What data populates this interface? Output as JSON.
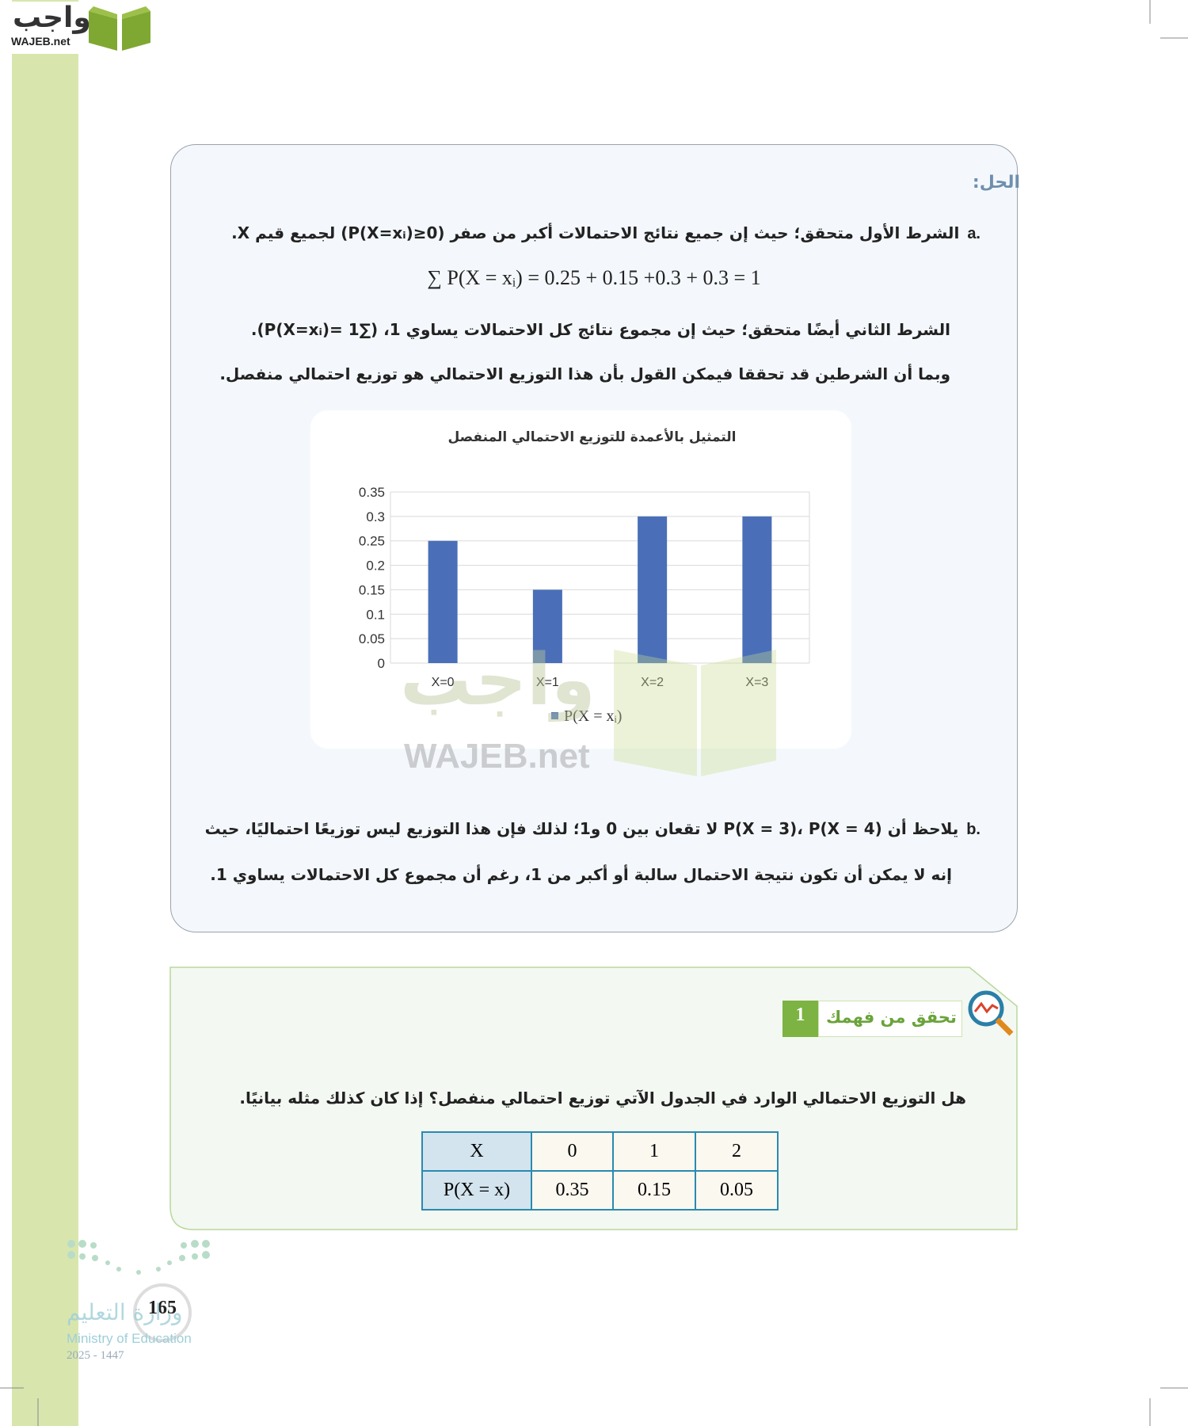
{
  "logo": {
    "ar": "واجب",
    "en": "WAJEB.net"
  },
  "solution": {
    "heading": "الحل:",
    "a": {
      "label": "a.",
      "line1": "الشرط الأول متحقق؛ حيث إن جميع نتائج الاحتمالات أكبر من صفر (P(X=xᵢ)≥0) لجميع قيم X.",
      "equation": "∑ P(X = xᵢ) = 0.25 + 0.15 +0.3 + 0.3 = 1",
      "line2": "الشرط الثاني أيضًا متحقق؛ حيث إن مجموع نتائج كل الاحتمالات يساوي 1، (∑P(X=xᵢ)= 1).",
      "line3": "وبما أن الشرطين قد تحققا فيمكن القول بأن هذا التوزيع الاحتمالي هو توزيع احتمالي منفصل."
    },
    "b": {
      "label": "b.",
      "line1": "يلاحظ أن P(X = 3)، P(X = 4) لا تقعان بين 0 و1؛ لذلك فإن هذا التوزيع ليس توزيعًا احتماليًا، حيث",
      "line2": "إنه لا يمكن أن تكون نتيجة الاحتمال سالبة أو أكبر من 1، رغم أن مجموع كل الاحتمالات يساوي 1."
    }
  },
  "chart_data": {
    "type": "bar",
    "title": "التمثيل بالأعمدة للتوزيع الاحتمالي المنفصل",
    "categories": [
      "X=0",
      "X=1",
      "X=2",
      "X=3"
    ],
    "series": [
      {
        "name": "P(X = xᵢ)",
        "color": "#4a6fb8",
        "values": [
          0.25,
          0.15,
          0.3,
          0.3
        ]
      }
    ],
    "ylim": [
      0,
      0.35
    ],
    "yticks": [
      0,
      0.05,
      0.1,
      0.15,
      0.2,
      0.25,
      0.3,
      0.35
    ],
    "grid": true,
    "legend": "bottom"
  },
  "check": {
    "title": "تحقق من فهمك",
    "number": "1",
    "question": "هل التوزيع الاحتمالي الوارد في الجدول الآتي توزيع احتمالي منفصل؟ إذا كان كذلك مثله بيانيًا.",
    "table": {
      "rows": [
        [
          "X",
          "0",
          "1",
          "2"
        ],
        [
          "P(X = x)",
          "0.35",
          "0.15",
          "0.05"
        ]
      ]
    }
  },
  "footer": {
    "page": "165",
    "ministry_ar": "وزارة التعليم",
    "ministry_en": "Ministry of Education",
    "year": "2025 - 1447"
  }
}
